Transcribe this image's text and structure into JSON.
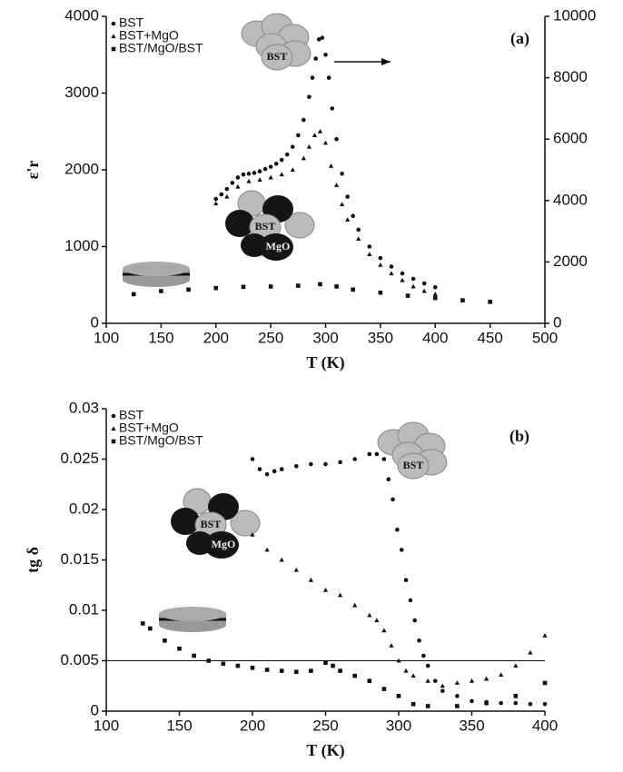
{
  "chart_data": [
    {
      "type": "scatter",
      "panel_label": "(a)",
      "xlabel": "T (K)",
      "ylabel": "ε'r",
      "xlim": [
        100,
        500
      ],
      "xticks": [
        100,
        150,
        200,
        250,
        300,
        350,
        400,
        450,
        500
      ],
      "ylim": [
        0,
        4000
      ],
      "yticks": [
        0,
        1000,
        2000,
        3000,
        4000
      ],
      "y2lim": [
        0,
        10000
      ],
      "y2ticks": [
        0,
        2000,
        4000,
        6000,
        8000,
        10000
      ],
      "icon_labels": [
        "BST",
        "BST",
        "MgO"
      ],
      "series": [
        {
          "name": "BST",
          "marker": "circle",
          "color": "#111111",
          "axis": "y2",
          "x": [
            200,
            205,
            210,
            215,
            220,
            225,
            230,
            235,
            240,
            245,
            250,
            255,
            260,
            265,
            270,
            275,
            280,
            285,
            288,
            291,
            294,
            297,
            300,
            303,
            306,
            310,
            315,
            320,
            325,
            330,
            340,
            350,
            360,
            370,
            380,
            390,
            400
          ],
          "values": [
            4050,
            4200,
            4375,
            4575,
            4750,
            4850,
            4875,
            4900,
            4950,
            5025,
            5100,
            5200,
            5325,
            5500,
            5750,
            6125,
            6625,
            7375,
            8000,
            8625,
            9250,
            9300,
            8750,
            8000,
            7000,
            6000,
            4875,
            4125,
            3500,
            3050,
            2500,
            2125,
            1850,
            1625,
            1450,
            1300,
            1175
          ]
        },
        {
          "name": "BST+MgO",
          "marker": "triangle",
          "color": "#111111",
          "x": [
            200,
            210,
            220,
            230,
            240,
            250,
            260,
            270,
            280,
            285,
            290,
            295,
            300,
            305,
            310,
            315,
            320,
            330,
            340,
            350,
            360,
            370,
            380,
            390,
            400
          ],
          "values": [
            1560,
            1650,
            1780,
            1850,
            1870,
            1900,
            1940,
            2000,
            2150,
            2300,
            2450,
            2500,
            2350,
            2050,
            1800,
            1550,
            1350,
            1100,
            900,
            760,
            650,
            560,
            480,
            420,
            380
          ]
        },
        {
          "name": "BST/MgO/BST",
          "marker": "square",
          "color": "#111111",
          "x": [
            125,
            150,
            175,
            200,
            225,
            250,
            275,
            295,
            310,
            325,
            350,
            375,
            400,
            425,
            450
          ],
          "values": [
            380,
            420,
            440,
            460,
            475,
            480,
            490,
            510,
            480,
            440,
            400,
            360,
            330,
            300,
            280
          ]
        }
      ]
    },
    {
      "type": "scatter",
      "panel_label": "(b)",
      "xlabel": "T (K)",
      "ylabel": "tg δ",
      "xlim": [
        100,
        400
      ],
      "xticks": [
        100,
        150,
        200,
        250,
        300,
        350,
        400
      ],
      "ylim": [
        0,
        0.03
      ],
      "yticks": [
        0,
        0.005,
        0.01,
        0.015,
        0.02,
        0.025,
        0.03
      ],
      "hline": 0.005,
      "icon_labels": [
        "BST",
        "BST",
        "MgO"
      ],
      "series": [
        {
          "name": "BST",
          "marker": "circle",
          "color": "#111111",
          "x": [
            200,
            205,
            210,
            215,
            220,
            230,
            240,
            250,
            260,
            270,
            280,
            285,
            290,
            293,
            296,
            299,
            302,
            305,
            308,
            311,
            314,
            317,
            320,
            325,
            330,
            340,
            350,
            360,
            370,
            380,
            390,
            400
          ],
          "values": [
            0.025,
            0.024,
            0.0235,
            0.0238,
            0.024,
            0.0243,
            0.0245,
            0.0245,
            0.0247,
            0.025,
            0.0255,
            0.0255,
            0.025,
            0.023,
            0.021,
            0.018,
            0.016,
            0.013,
            0.011,
            0.009,
            0.007,
            0.0055,
            0.0045,
            0.003,
            0.002,
            0.0015,
            0.001,
            0.0009,
            0.0008,
            0.0008,
            0.0007,
            0.0007
          ]
        },
        {
          "name": "BST+MgO",
          "marker": "triangle",
          "color": "#111111",
          "x": [
            200,
            210,
            220,
            230,
            240,
            250,
            260,
            270,
            280,
            285,
            290,
            295,
            300,
            305,
            310,
            320,
            330,
            340,
            350,
            360,
            370,
            380,
            390,
            400
          ],
          "values": [
            0.0175,
            0.016,
            0.015,
            0.014,
            0.013,
            0.012,
            0.0115,
            0.0105,
            0.0095,
            0.009,
            0.008,
            0.0065,
            0.005,
            0.004,
            0.0035,
            0.003,
            0.0025,
            0.0028,
            0.003,
            0.0032,
            0.0036,
            0.0045,
            0.0058,
            0.0075
          ]
        },
        {
          "name": "BST/MgO/BST",
          "marker": "square",
          "color": "#111111",
          "x": [
            125,
            130,
            140,
            150,
            160,
            170,
            180,
            190,
            200,
            210,
            220,
            230,
            240,
            250,
            255,
            260,
            270,
            280,
            290,
            300,
            310,
            320,
            340,
            360,
            380,
            400
          ],
          "values": [
            0.0087,
            0.0082,
            0.007,
            0.0062,
            0.0055,
            0.005,
            0.0047,
            0.0045,
            0.0043,
            0.0041,
            0.004,
            0.0039,
            0.004,
            0.0048,
            0.0045,
            0.004,
            0.0035,
            0.003,
            0.0022,
            0.0015,
            0.0007,
            0.0005,
            0.0005,
            0.0008,
            0.0015,
            0.0028
          ]
        }
      ]
    }
  ]
}
